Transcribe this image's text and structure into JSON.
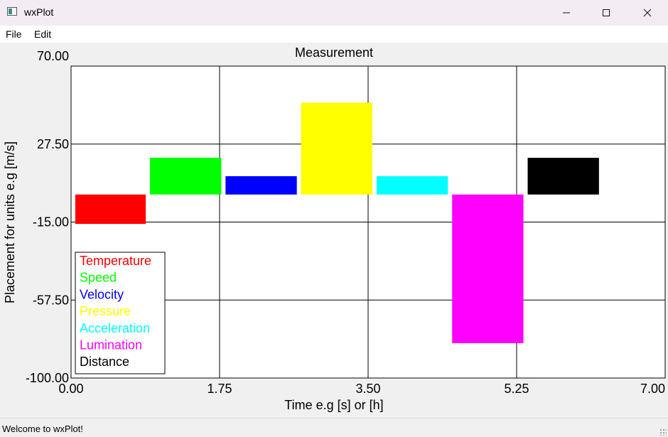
{
  "window": {
    "title": "wxPlot",
    "icon": "app-window-icon",
    "controls": {
      "minimize": "—",
      "maximize": "☐",
      "close": "✕"
    }
  },
  "menu": {
    "items": [
      {
        "label": "File"
      },
      {
        "label": "Edit"
      }
    ]
  },
  "status": {
    "text": "Welcome to wxPlot!"
  },
  "chart_data": {
    "type": "bar",
    "title": "Measurement",
    "xlabel": "Time e.g [s] or [h]",
    "ylabel": "Placement for units e.g [m/s]",
    "xlim": [
      0,
      7
    ],
    "ylim": [
      -100,
      70
    ],
    "xticks": [
      "0.00",
      "1.75",
      "3.50",
      "5.25",
      "7.00"
    ],
    "yticks": [
      "70.00",
      "27.50",
      "-15.00",
      "-57.50",
      "-100.00"
    ],
    "grid": true,
    "legend_position": "bottom-left",
    "series": [
      {
        "name": "Temperature",
        "color": "#ff0000",
        "x0": 0.05,
        "x1": 0.88,
        "y0": -16,
        "y1": 0
      },
      {
        "name": "Speed",
        "color": "#00ff00",
        "x0": 0.93,
        "x1": 1.77,
        "y0": 0,
        "y1": 20
      },
      {
        "name": "Velocity",
        "color": "#0000ff",
        "x0": 1.82,
        "x1": 2.66,
        "y0": 0,
        "y1": 10
      },
      {
        "name": "Pressure",
        "color": "#ffff00",
        "x0": 2.71,
        "x1": 3.55,
        "y0": 0,
        "y1": 50
      },
      {
        "name": "Acceleration",
        "color": "#00ffff",
        "x0": 3.6,
        "x1": 4.44,
        "y0": 0,
        "y1": 10
      },
      {
        "name": "Lumination",
        "color": "#ff00ff",
        "x0": 4.49,
        "x1": 5.33,
        "y0": -81,
        "y1": 0
      },
      {
        "name": "Distance",
        "color": "#000000",
        "x0": 5.38,
        "x1": 6.22,
        "y0": 0,
        "y1": 20
      }
    ]
  }
}
